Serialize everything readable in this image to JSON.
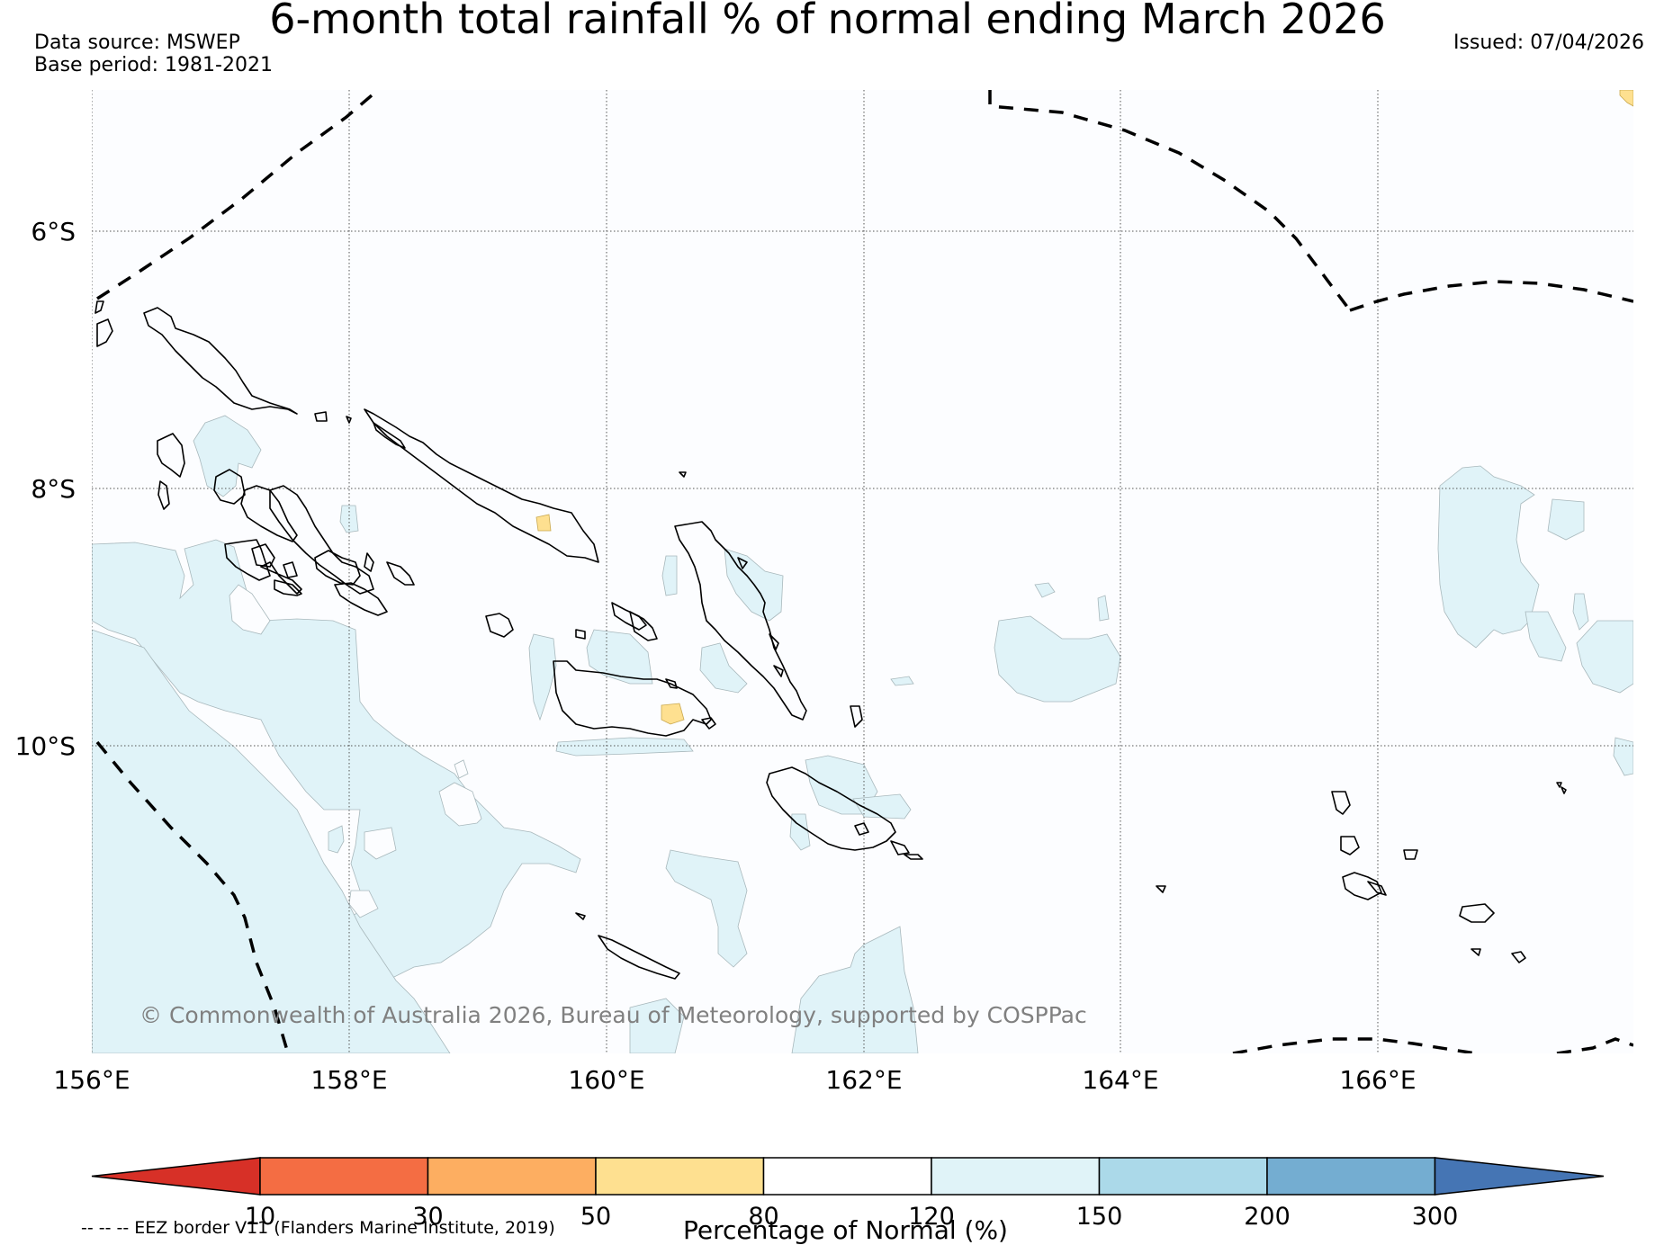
{
  "header": {
    "title": "6-month total rainfall % of normal ending March 2026",
    "data_source": "Data source: MSWEP",
    "base_period": "Base period: 1981-2021",
    "issued": "Issued: 07/04/2026"
  },
  "map": {
    "longitude_labels": [
      "156°E",
      "158°E",
      "160°E",
      "162°E",
      "164°E",
      "166°E"
    ],
    "latitude_labels": [
      "6°S",
      "8°S",
      "10°S"
    ],
    "copyright": "© Commonwealth of Australia 2026, Bureau of Meteorology, supported by COSPPac",
    "region": "Solomon Islands"
  },
  "colorbar": {
    "title": "Percentage of Normal (%)",
    "ticks": [
      "10",
      "30",
      "50",
      "80",
      "120",
      "150",
      "200",
      "300"
    ],
    "colors": [
      "#d73027",
      "#f46d43",
      "#fdae61",
      "#fee090",
      "#ffffff",
      "#e0f3f8",
      "#abd9e9",
      "#74add1",
      "#4575b4"
    ],
    "extend": "both"
  },
  "legend_note": "-- -- -- EEZ border V11 (Flanders Marine Institute, 2019)",
  "colors": {
    "ocean_background": "#fcfdff",
    "slightly_above_normal": "#e0f3f8",
    "slightly_below_normal": "#fee090",
    "coastline": "#000000"
  }
}
